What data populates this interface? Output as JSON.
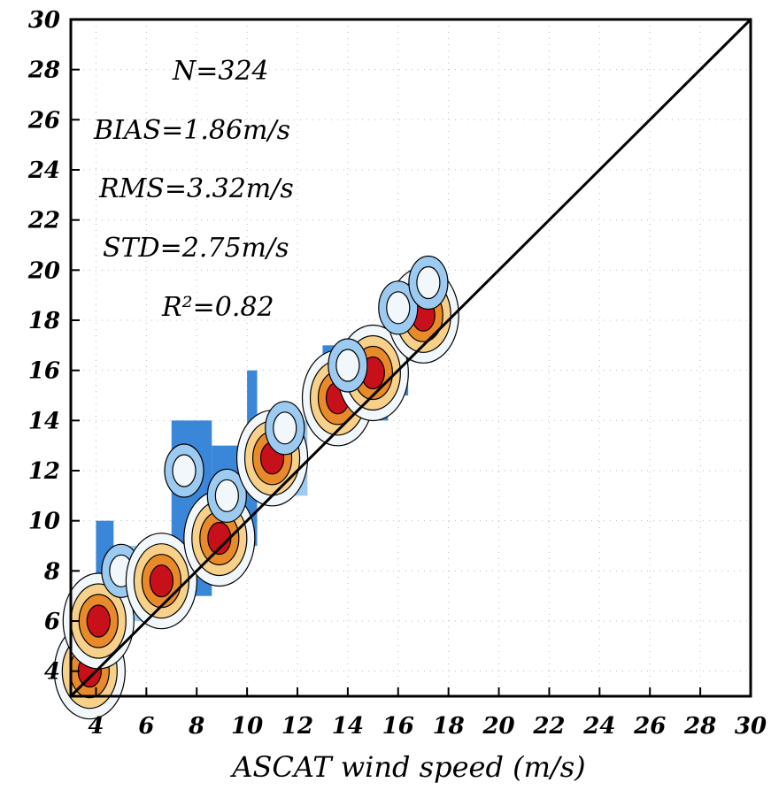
{
  "chart_data": {
    "type": "heatmap",
    "title": "",
    "xlabel": "ASCAT wind speed (m/s)",
    "ylabel": "",
    "xlim": [
      3,
      30
    ],
    "ylim": [
      3,
      30
    ],
    "xticks": [
      4,
      6,
      8,
      10,
      12,
      14,
      16,
      18,
      20,
      22,
      24,
      26,
      28,
      30
    ],
    "yticks": [
      4,
      6,
      8,
      10,
      12,
      14,
      16,
      18,
      20,
      22,
      24,
      26,
      28,
      30
    ],
    "grid": true,
    "reference_line": {
      "from": [
        3,
        3
      ],
      "to": [
        30,
        30
      ]
    },
    "statistics": {
      "n": "N=324",
      "bias": "BIAS=1.86m/s",
      "rms": "RMS=3.32m/s",
      "std": "STD=2.75m/s",
      "r2": "R²=0.82"
    },
    "colors": {
      "low": "#3a86d8",
      "mid_low": "#9ccaf0",
      "mid": "#f2f7fb",
      "mid_high": "#f7d08a",
      "high": "#e88a2a",
      "peak": "#c8101a"
    },
    "density_points": [
      {
        "x": 3.75,
        "y": 4.0,
        "v": 0.85
      },
      {
        "x": 4.1,
        "y": 6.0,
        "v": 0.75
      },
      {
        "x": 5.0,
        "y": 8.0,
        "v": 0.2
      },
      {
        "x": 6.6,
        "y": 7.6,
        "v": 0.8
      },
      {
        "x": 7.5,
        "y": 12.0,
        "v": 0.15
      },
      {
        "x": 8.9,
        "y": 9.3,
        "v": 0.9
      },
      {
        "x": 9.2,
        "y": 11.0,
        "v": 0.35
      },
      {
        "x": 11.0,
        "y": 12.5,
        "v": 0.6
      },
      {
        "x": 11.5,
        "y": 13.7,
        "v": 0.3
      },
      {
        "x": 13.6,
        "y": 14.9,
        "v": 0.55
      },
      {
        "x": 15.0,
        "y": 15.9,
        "v": 1.0
      },
      {
        "x": 14.0,
        "y": 16.2,
        "v": 0.2
      },
      {
        "x": 17.0,
        "y": 18.2,
        "v": 0.85
      },
      {
        "x": 16.0,
        "y": 18.5,
        "v": 0.3
      },
      {
        "x": 17.2,
        "y": 19.5,
        "v": 0.35
      }
    ]
  }
}
